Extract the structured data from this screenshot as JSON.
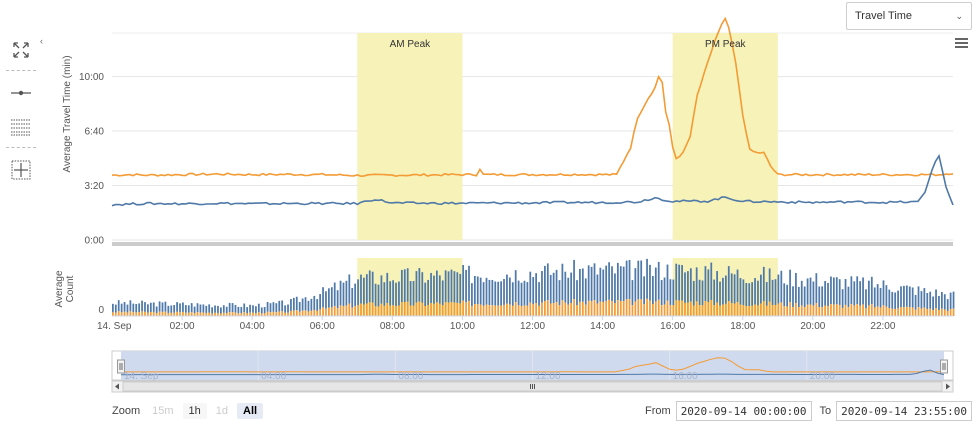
{
  "metric_selector": {
    "value": "Travel Time"
  },
  "toolbar": {
    "buttons": [
      {
        "name": "fullscreen"
      },
      {
        "name": "line-mode"
      },
      {
        "name": "table-mode"
      },
      {
        "name": "crosshair-mode"
      }
    ]
  },
  "zoom": {
    "label": "Zoom",
    "buttons": [
      {
        "label": "15m",
        "state": "disabled"
      },
      {
        "label": "1h",
        "state": "normal"
      },
      {
        "label": "1d",
        "state": "disabled"
      },
      {
        "label": "All",
        "state": "active"
      }
    ]
  },
  "range": {
    "from_label": "From",
    "from_value": "2020-09-14 00:00:00",
    "to_label": "To",
    "to_value": "2020-09-14 23:55:00"
  },
  "chart_data": {
    "type": "line",
    "colors": {
      "series_a": "#f39b35",
      "series_b": "#4f79a8",
      "band": "#f6f2b8"
    },
    "bands": [
      {
        "label": "AM Peak",
        "from": 7,
        "to": 10
      },
      {
        "label": "PM Peak",
        "from": 16,
        "to": 19
      }
    ],
    "top": {
      "ylabel": "Average Travel Time (min)",
      "yticks": [
        "0:00",
        "3:20",
        "6:40",
        "10:00"
      ],
      "ylim": [
        0,
        760
      ],
      "series": [
        {
          "color": "#f39b35",
          "x": [
            0,
            0.5,
            1,
            2,
            3,
            4,
            5,
            6,
            7,
            8,
            9,
            10,
            10.4,
            10.5,
            10.6,
            11,
            12,
            13,
            14,
            14.4,
            14.8,
            15.0,
            15.3,
            15.5,
            15.6,
            15.7,
            15.8,
            15.9,
            16.0,
            16.1,
            16.3,
            16.5,
            16.7,
            17.0,
            17.2,
            17.4,
            17.5,
            17.6,
            17.8,
            18.0,
            18.2,
            18.4,
            18.6,
            18.8,
            19.0,
            19.5,
            20,
            21,
            22,
            23,
            23.6,
            24
          ],
          "y": [
            238,
            240,
            238,
            240,
            242,
            240,
            241,
            240,
            237,
            238,
            239,
            240,
            240,
            262,
            240,
            240,
            240,
            241,
            240,
            240,
            340,
            450,
            520,
            560,
            600,
            580,
            470,
            420,
            340,
            300,
            320,
            380,
            530,
            650,
            730,
            790,
            810,
            780,
            650,
            460,
            330,
            320,
            320,
            270,
            240,
            240,
            240,
            240,
            240,
            240,
            240,
            246
          ]
        },
        {
          "color": "#4f79a8",
          "x": [
            0,
            1,
            2,
            3,
            4,
            5,
            6,
            7,
            7.5,
            8,
            9,
            10,
            11,
            12,
            13,
            14,
            15,
            15.5,
            16,
            17,
            17.5,
            18,
            19,
            20,
            21,
            22,
            23,
            23.2,
            23.4,
            23.6,
            23.8,
            24
          ],
          "y": [
            130,
            134,
            133,
            135,
            133,
            134,
            134,
            134,
            150,
            136,
            135,
            135,
            136,
            136,
            138,
            138,
            140,
            155,
            142,
            143,
            157,
            142,
            140,
            138,
            140,
            138,
            140,
            175,
            260,
            310,
            195,
            130
          ]
        }
      ]
    },
    "bottom": {
      "ylabel": "Average Count",
      "yticks": [
        "0"
      ],
      "x_start_label": "14. Sep",
      "xticks": [
        "02:00",
        "04:00",
        "06:00",
        "08:00",
        "10:00",
        "12:00",
        "14:00",
        "16:00",
        "18:00",
        "20:00",
        "22:00"
      ],
      "bar_interval_hours": 0.0833,
      "total_profile": {
        "hours": [
          0,
          4,
          5,
          6,
          7,
          10,
          14,
          16,
          17,
          19,
          22,
          24
        ],
        "values": [
          14,
          11,
          14,
          25,
          40,
          44,
          49,
          49,
          47,
          42,
          33,
          22
        ]
      },
      "orange_share": 0.3
    },
    "navigator": {
      "xticks": [
        "14. Sep",
        "04:00",
        "08:00",
        "12:00",
        "16:00",
        "20:00"
      ]
    }
  }
}
